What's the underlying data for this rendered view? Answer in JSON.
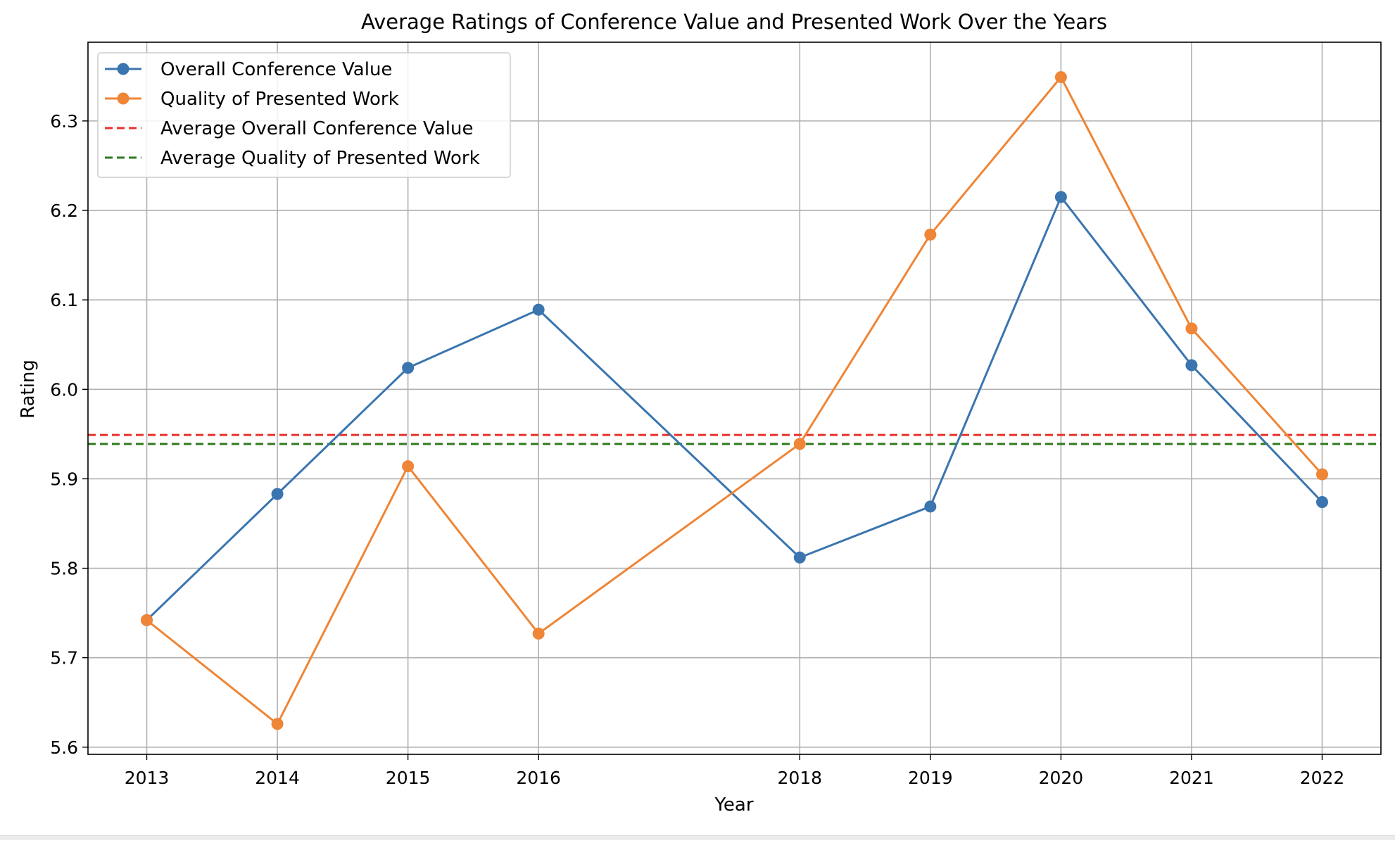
{
  "chart_data": {
    "type": "line",
    "title": "Average Ratings of Conference Value and Presented Work Over the Years",
    "xlabel": "Year",
    "ylabel": "Rating",
    "x": [
      2013,
      2014,
      2015,
      2016,
      2018,
      2019,
      2020,
      2021,
      2022
    ],
    "xlim": [
      2012.55,
      2022.45
    ],
    "ylim": [
      5.592,
      6.388
    ],
    "yticks": [
      5.6,
      5.7,
      5.8,
      5.9,
      6.0,
      6.1,
      6.2,
      6.3
    ],
    "grid": true,
    "legend_position": "top-left",
    "series": [
      {
        "name": "Overall Conference Value",
        "style": "solid-marker",
        "color": "#3a75af",
        "values": [
          5.742,
          5.883,
          6.024,
          6.089,
          5.812,
          5.869,
          6.215,
          6.027,
          5.874
        ]
      },
      {
        "name": "Quality of Presented Work",
        "style": "solid-marker",
        "color": "#ef8536",
        "values": [
          5.742,
          5.626,
          5.914,
          5.727,
          5.939,
          6.173,
          6.349,
          6.068,
          5.905
        ]
      }
    ],
    "reference_lines": [
      {
        "name": "Average Overall Conference Value",
        "style": "dashed",
        "color": "#e8302a",
        "value": 5.949
      },
      {
        "name": "Average Quality of Presented Work",
        "style": "dashed",
        "color": "#2f7a1f",
        "value": 5.939
      }
    ]
  }
}
